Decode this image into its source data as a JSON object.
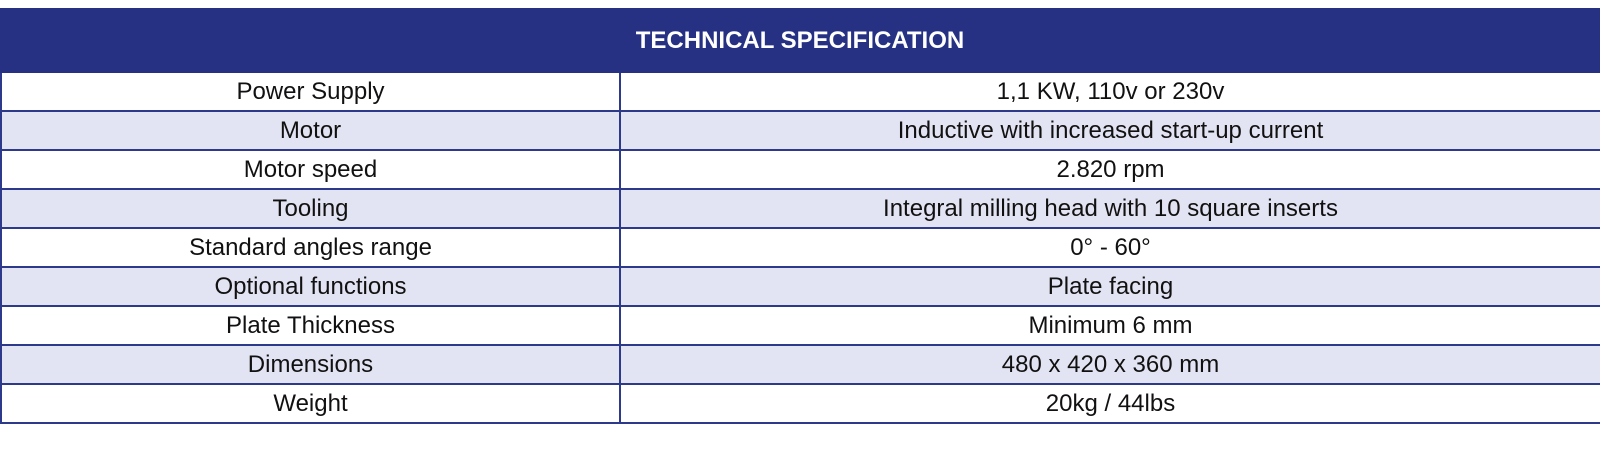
{
  "header": {
    "title": "TECHNICAL SPECIFICATION"
  },
  "colors": {
    "header_bg": "#263183",
    "row_tint": "#e3e4f3",
    "border": "#2d3a8c"
  },
  "rows": [
    {
      "label": "Power Supply",
      "value": "1,1 KW, 110v or 230v"
    },
    {
      "label": "Motor",
      "value": "Inductive with increased start-up current"
    },
    {
      "label": "Motor speed",
      "value": "2.820 rpm"
    },
    {
      "label": "Tooling",
      "value": "Integral milling head with 10 square inserts"
    },
    {
      "label": "Standard angles range",
      "value": "0° - 60°"
    },
    {
      "label": "Optional functions",
      "value": "Plate facing"
    },
    {
      "label": "Plate Thickness",
      "value": "Minimum 6 mm"
    },
    {
      "label": "Dimensions",
      "value": "480 x 420 x 360 mm"
    },
    {
      "label": "Weight",
      "value": "20kg / 44lbs"
    }
  ]
}
